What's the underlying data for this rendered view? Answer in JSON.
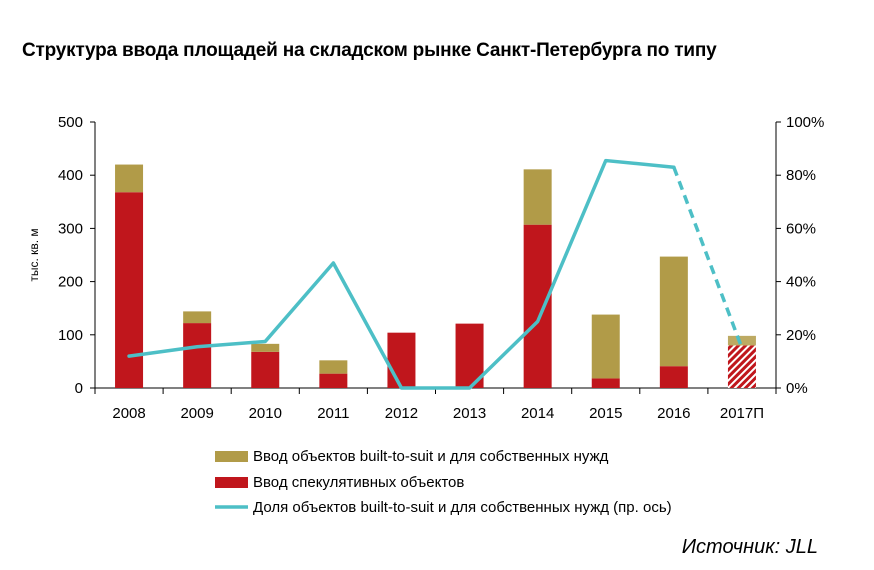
{
  "title": "Структура ввода площадей на складском рынке Санкт-Петербурга по типу",
  "source": "Источник: JLL",
  "colors": {
    "bts": "#b19b48",
    "spec": "#c0161c",
    "share": "#4dbfc6",
    "forecast_hatch": "#c0161c"
  },
  "chart_data": {
    "type": "bar",
    "stacked": true,
    "categories": [
      "2008",
      "2009",
      "2010",
      "2011",
      "2012",
      "2013",
      "2014",
      "2015",
      "2016",
      "2017П"
    ],
    "ylabel": "тыс. кв. м",
    "ylim": [
      0,
      500
    ],
    "yticks": [
      "0",
      "100",
      "200",
      "300",
      "400",
      "500"
    ],
    "y2lim": [
      0,
      100
    ],
    "y2ticks": [
      "0%",
      "20%",
      "40%",
      "60%",
      "80%",
      "100%"
    ],
    "series": [
      {
        "name": "Ввод спекулятивных объектов",
        "kind": "bar",
        "values": [
          368,
          122,
          68,
          27,
          104,
          121,
          307,
          18,
          41,
          80
        ]
      },
      {
        "name": "Ввод объектов built-to-suit и для собственных нужд",
        "kind": "bar",
        "values": [
          52,
          22,
          15,
          25,
          0,
          0,
          104,
          120,
          206,
          18
        ]
      },
      {
        "name": "Доля объектов built-to-suit и для собственных нужд (пр. ось)",
        "kind": "line",
        "axis": "right",
        "values": [
          12,
          15.5,
          17.5,
          47,
          0,
          0,
          25,
          85.5,
          83,
          15
        ],
        "dashed_from_index": 8
      }
    ],
    "legend": [
      "Ввод объектов built-to-suit и для собственных нужд",
      "Ввод спекулятивных объектов",
      "Доля объектов built-to-suit и для собственных нужд (пр. ось)"
    ],
    "legend_position": "bottom",
    "grid": false
  }
}
